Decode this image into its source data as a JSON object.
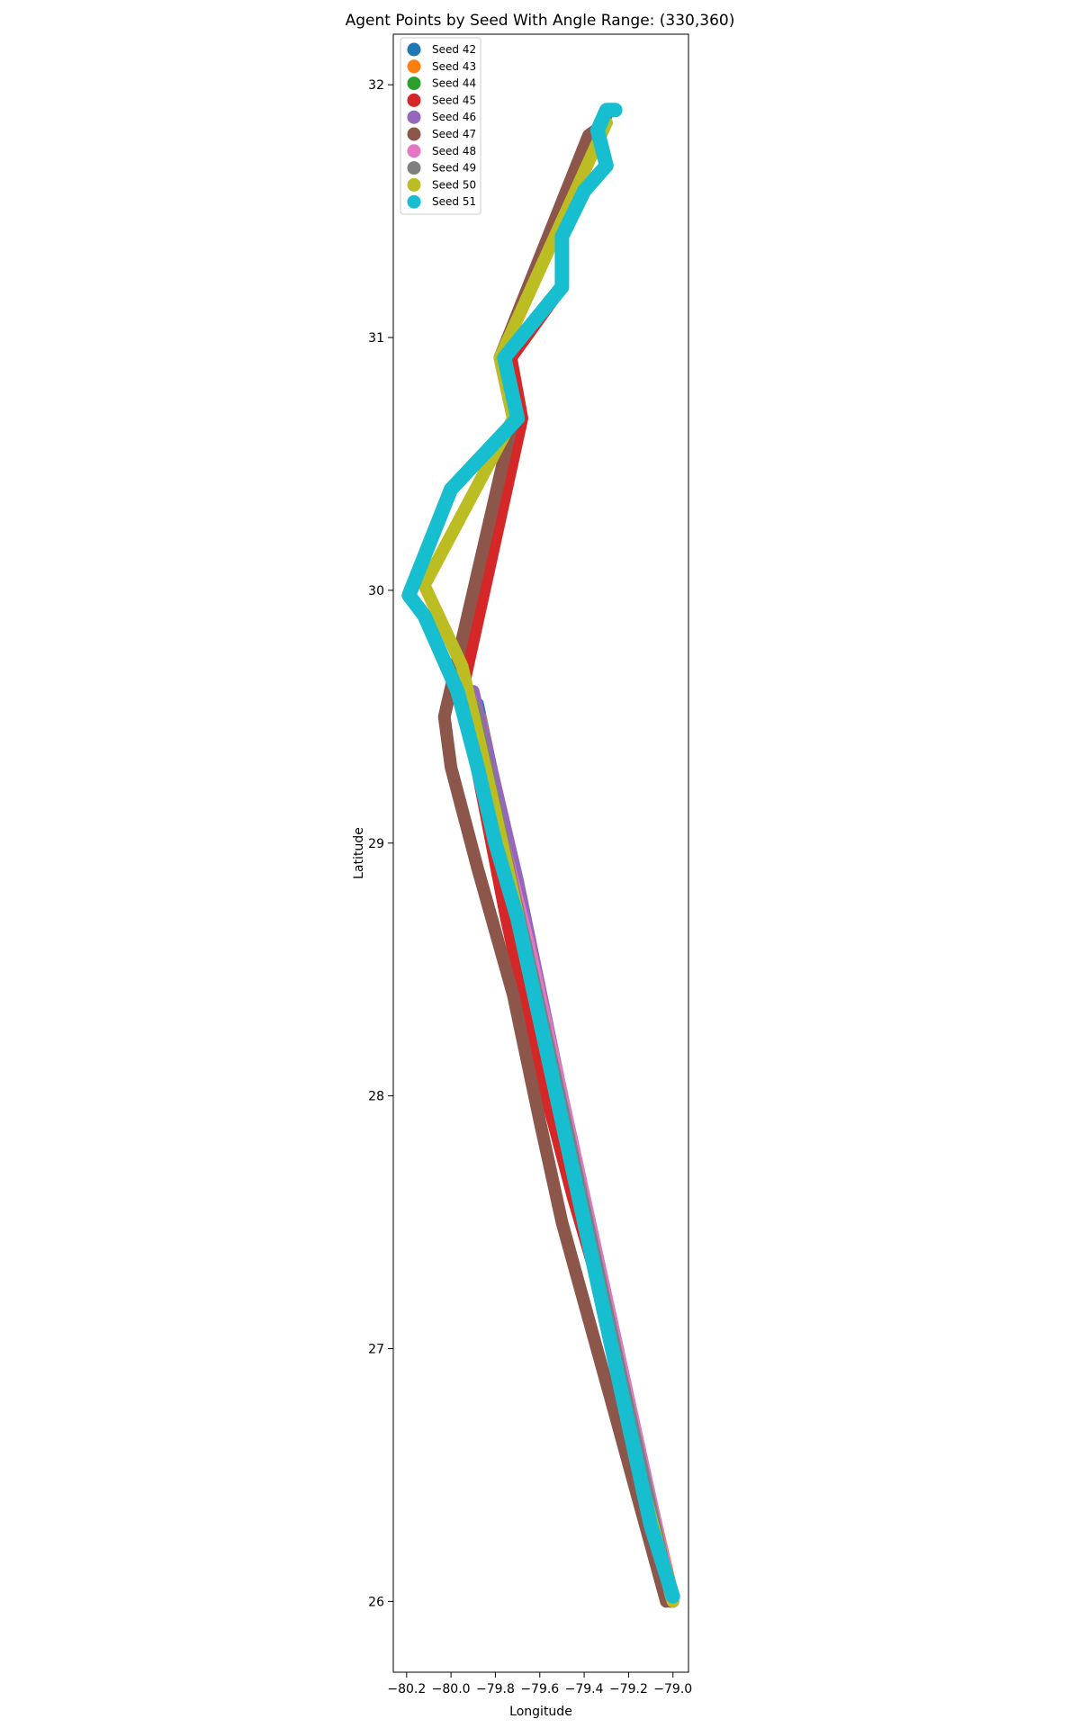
{
  "chart_data": {
    "type": "scatter",
    "title": "Agent Points by Seed With Angle Range: (330,360)",
    "xlabel": "Longitude",
    "ylabel": "Latitude",
    "xlim": [
      -80.26,
      -78.93
    ],
    "ylim": [
      25.72,
      32.2
    ],
    "xticks": [
      -80.2,
      -80.0,
      -79.8,
      -79.6,
      -79.4,
      -79.2,
      -79.0
    ],
    "xtick_labels": [
      "−80.2",
      "−80.0",
      "−79.8",
      "−79.6",
      "−79.4",
      "−79.2",
      "−79.0"
    ],
    "yticks": [
      26,
      27,
      28,
      29,
      30,
      31,
      32
    ],
    "ytick_labels": [
      "26",
      "27",
      "28",
      "29",
      "30",
      "31",
      "32"
    ],
    "legend_position": "top-left",
    "series": [
      {
        "name": "Seed 42",
        "color": "#1f77b4",
        "points": [
          [
            -79.0,
            26.0
          ],
          [
            -79.2,
            26.8
          ],
          [
            -79.45,
            27.8
          ],
          [
            -79.7,
            28.8
          ],
          [
            -79.88,
            29.55
          ]
        ]
      },
      {
        "name": "Seed 43",
        "color": "#ff7f0e",
        "points": [
          [
            -79.0,
            26.02
          ],
          [
            -79.22,
            26.85
          ],
          [
            -79.47,
            27.85
          ],
          [
            -79.69,
            28.75
          ],
          [
            -79.87,
            29.5
          ]
        ]
      },
      {
        "name": "Seed 44",
        "color": "#2ca02c",
        "points": [
          [
            -79.01,
            26.0
          ],
          [
            -79.24,
            26.9
          ],
          [
            -79.5,
            27.9
          ],
          [
            -79.72,
            28.8
          ],
          [
            -79.92,
            29.52
          ]
        ]
      },
      {
        "name": "Seed 45",
        "color": "#d62728",
        "points": [
          [
            -79.01,
            26.0
          ],
          [
            -79.2,
            26.7
          ],
          [
            -79.35,
            27.3
          ],
          [
            -79.45,
            27.6
          ],
          [
            -79.6,
            28.1
          ],
          [
            -79.75,
            28.7
          ],
          [
            -79.95,
            29.6
          ],
          [
            -79.68,
            30.68
          ],
          [
            -79.73,
            30.92
          ],
          [
            -79.5,
            31.2
          ],
          [
            -79.5,
            31.4
          ],
          [
            -79.36,
            31.8
          ],
          [
            -79.3,
            31.88
          ]
        ]
      },
      {
        "name": "Seed 46",
        "color": "#9467bd",
        "points": [
          [
            -79.02,
            26.05
          ],
          [
            -79.25,
            27.0
          ],
          [
            -79.5,
            28.0
          ],
          [
            -79.7,
            28.85
          ],
          [
            -79.9,
            29.6
          ]
        ]
      },
      {
        "name": "Seed 47",
        "color": "#8c564b",
        "points": [
          [
            -79.03,
            26.0
          ],
          [
            -79.28,
            26.8
          ],
          [
            -79.5,
            27.5
          ],
          [
            -79.6,
            27.9
          ],
          [
            -79.72,
            28.4
          ],
          [
            -79.88,
            28.9
          ],
          [
            -80.0,
            29.3
          ],
          [
            -80.03,
            29.5
          ],
          [
            -79.72,
            30.68
          ],
          [
            -79.78,
            30.92
          ],
          [
            -79.38,
            31.8
          ],
          [
            -79.3,
            31.85
          ]
        ]
      },
      {
        "name": "Seed 48",
        "color": "#e377c2",
        "points": [
          [
            -79.0,
            26.0
          ],
          [
            -79.2,
            26.8
          ],
          [
            -79.35,
            27.4
          ],
          [
            -79.45,
            27.8
          ],
          [
            -79.55,
            28.2
          ],
          [
            -79.65,
            28.6
          ],
          [
            -79.85,
            29.3
          ]
        ]
      },
      {
        "name": "Seed 49",
        "color": "#7f7f7f",
        "points": [
          [
            -79.01,
            26.02
          ],
          [
            -79.23,
            26.88
          ],
          [
            -79.48,
            27.88
          ],
          [
            -79.71,
            28.78
          ],
          [
            -79.9,
            29.55
          ]
        ]
      },
      {
        "name": "Seed 50",
        "color": "#bcbd22",
        "points": [
          [
            -79.0,
            26.0
          ],
          [
            -79.15,
            26.5
          ],
          [
            -79.3,
            27.1
          ],
          [
            -79.45,
            27.7
          ],
          [
            -79.6,
            28.3
          ],
          [
            -79.72,
            28.8
          ],
          [
            -79.82,
            29.2
          ],
          [
            -79.95,
            29.7
          ],
          [
            -80.12,
            30.02
          ],
          [
            -79.72,
            30.68
          ],
          [
            -79.78,
            30.92
          ],
          [
            -79.3,
            31.85
          ]
        ]
      },
      {
        "name": "Seed 51",
        "color": "#17becf",
        "points": [
          [
            -79.0,
            26.02
          ],
          [
            -79.1,
            26.3
          ],
          [
            -79.2,
            26.7
          ],
          [
            -79.3,
            27.1
          ],
          [
            -79.4,
            27.5
          ],
          [
            -79.5,
            27.9
          ],
          [
            -79.6,
            28.3
          ],
          [
            -79.7,
            28.7
          ],
          [
            -79.8,
            29.0
          ],
          [
            -79.88,
            29.3
          ],
          [
            -79.97,
            29.6
          ],
          [
            -80.12,
            29.9
          ],
          [
            -80.19,
            29.98
          ],
          [
            -80.0,
            30.4
          ],
          [
            -79.7,
            30.68
          ],
          [
            -79.76,
            30.92
          ],
          [
            -79.5,
            31.2
          ],
          [
            -79.5,
            31.4
          ],
          [
            -79.4,
            31.58
          ],
          [
            -79.3,
            31.68
          ],
          [
            -79.34,
            31.82
          ],
          [
            -79.3,
            31.9
          ],
          [
            -79.26,
            31.9
          ]
        ]
      }
    ]
  }
}
